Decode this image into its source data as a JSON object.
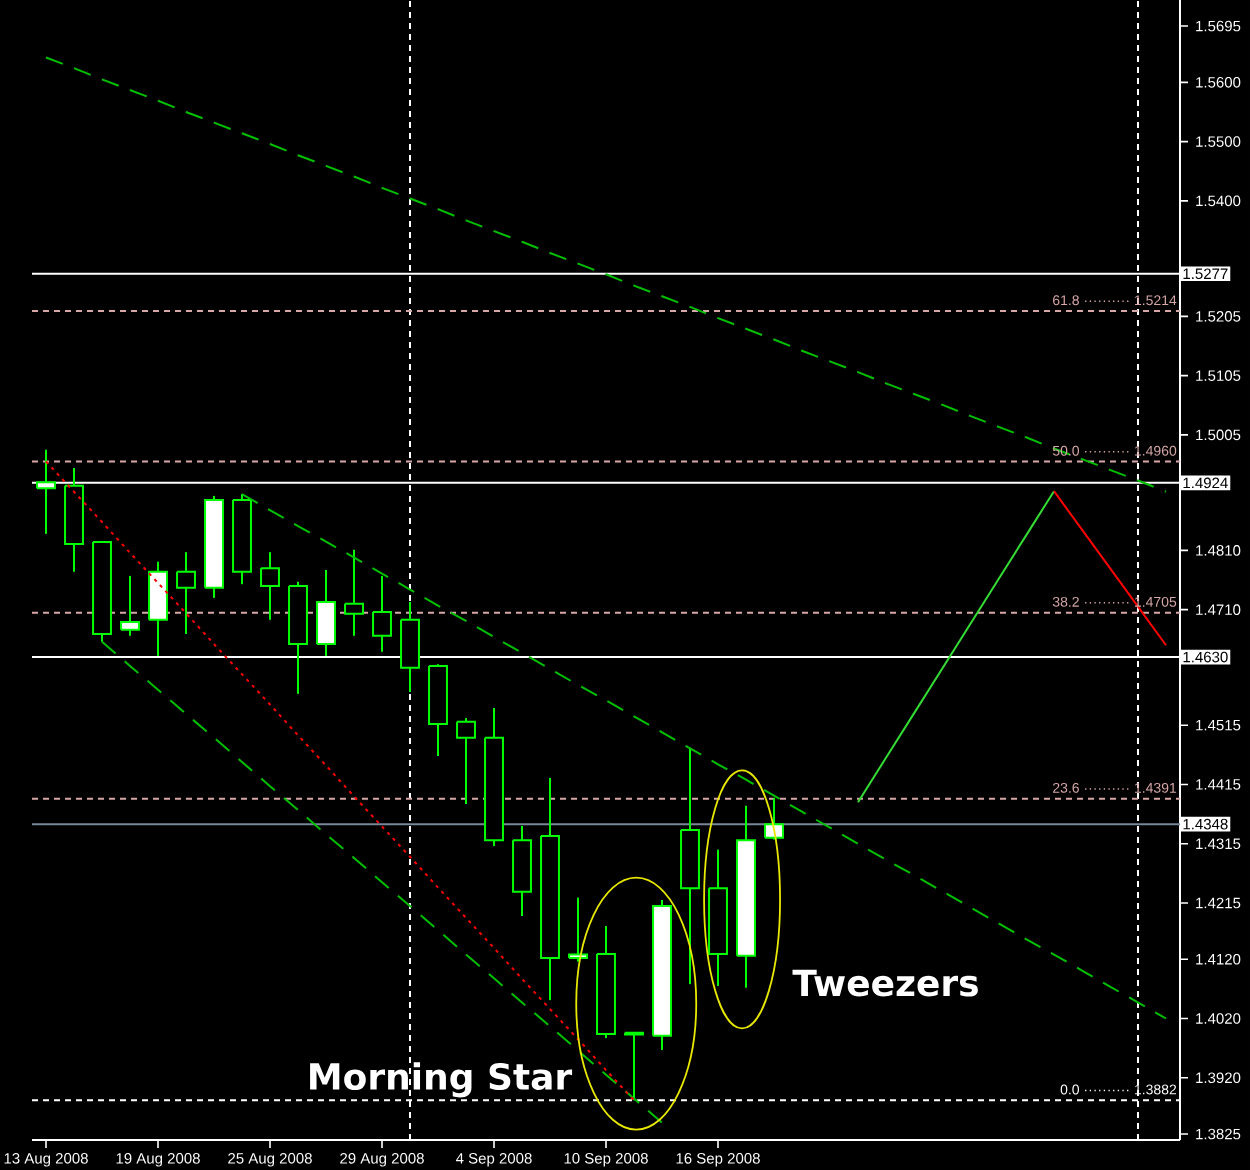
{
  "chart_data": {
    "type": "candlestick",
    "categories": [
      "13 Aug 2008",
      null,
      null,
      null,
      "19 Aug 2008",
      null,
      null,
      null,
      "25 Aug 2008",
      null,
      null,
      null,
      "29 Aug 2008",
      null,
      null,
      null,
      "4 Sep 2008",
      null,
      null,
      null,
      "10 Sep 2008",
      null,
      null,
      null,
      "16 Sep 2008",
      null,
      null,
      null,
      null,
      null,
      null,
      null,
      null,
      null,
      null,
      null,
      null,
      null,
      null,
      null,
      null
    ],
    "ohlc": [
      [
        1.4915,
        1.498,
        1.4838,
        1.4925
      ],
      [
        1.4919,
        1.4949,
        1.4774,
        1.4821
      ],
      [
        1.4824,
        1.4826,
        1.4656,
        1.4669
      ],
      [
        1.4676,
        1.4767,
        1.4666,
        1.4689
      ],
      [
        1.4693,
        1.4791,
        1.4632,
        1.4774
      ],
      [
        1.4774,
        1.4807,
        1.4669,
        1.4747
      ],
      [
        1.4747,
        1.4902,
        1.473,
        1.4895
      ],
      [
        1.4895,
        1.4905,
        1.4753,
        1.4774
      ],
      [
        1.478,
        1.4807,
        1.4693,
        1.475
      ],
      [
        1.475,
        1.4757,
        1.4568,
        1.4652
      ],
      [
        1.4652,
        1.4777,
        1.4632,
        1.4723
      ],
      [
        1.472,
        1.4811,
        1.4666,
        1.4703
      ],
      [
        1.4706,
        1.4767,
        1.4639,
        1.4666
      ],
      [
        1.4693,
        1.4723,
        1.4571,
        1.4612
      ],
      [
        1.4615,
        1.4618,
        1.4463,
        1.4517
      ],
      [
        1.4521,
        1.4527,
        1.4382,
        1.4494
      ],
      [
        1.4494,
        1.4544,
        1.4311,
        1.4321
      ],
      [
        1.4321,
        1.4345,
        1.4193,
        1.4234
      ],
      [
        1.4328,
        1.4426,
        1.4051,
        1.4122
      ],
      [
        1.4122,
        1.4224,
        1.4116,
        1.4128
      ],
      [
        1.4129,
        1.4176,
        1.3987,
        1.3994
      ],
      [
        1.3996,
        1.3996,
        1.3882,
        1.3993
      ],
      [
        1.3991,
        1.422,
        1.3967,
        1.421
      ],
      [
        1.4338,
        1.4477,
        1.4078,
        1.424
      ],
      [
        1.424,
        1.4305,
        1.4075,
        1.4129
      ],
      [
        1.4126,
        1.4379,
        1.4072,
        1.4321
      ],
      [
        1.4325,
        1.4392,
        1.4322,
        1.4348
      ],
      null,
      null,
      null,
      null,
      null,
      null,
      null,
      null,
      null,
      null,
      null,
      null,
      null,
      null
    ],
    "color": "#00ff00",
    "colors": [
      "#ffffff",
      "#000000",
      "#000000",
      "#ffffff",
      "#ffffff",
      "#000000",
      "#ffffff",
      "#000000",
      "#000000",
      "#000000",
      "#ffffff",
      "#000000",
      "#000000",
      "#000000",
      "#000000",
      "#000000",
      "#000000",
      "#000000",
      "#000000",
      "#ffffff",
      "#000000",
      "#000000",
      "#ffffff",
      "#000000",
      "#000000",
      "#ffffff",
      "#ffffff",
      null,
      null,
      null,
      null,
      null,
      null,
      null,
      null,
      null,
      null,
      null,
      null,
      null,
      null
    ],
    "series": [
      {
        "type": "line",
        "values": [
          1.5642,
          1.5624,
          1.5605,
          1.5587,
          1.5569,
          1.555,
          1.5532,
          1.5514,
          1.5496,
          1.5477,
          1.5459,
          1.5441,
          1.5422,
          1.5404,
          1.5386,
          1.5367,
          1.5349,
          1.5331,
          1.5312,
          1.5294,
          1.5276,
          1.5257,
          1.5239,
          1.5221,
          1.5202,
          1.5184,
          1.5166,
          1.5147,
          1.5129,
          1.5111,
          1.5092,
          1.5074,
          1.5056,
          1.5037,
          1.5019,
          1.5001,
          1.4982,
          1.4964,
          1.4946,
          1.4928,
          1.4909
        ],
        "color": "#00c000",
        "line_style": "dashed"
      },
      {
        "type": "line",
        "values": [
          null,
          null,
          null,
          null,
          null,
          null,
          null,
          1.4905,
          1.4878,
          1.4851,
          1.4825,
          1.4798,
          1.4771,
          1.4744,
          1.4717,
          1.4691,
          1.4664,
          1.4637,
          1.461,
          1.4583,
          1.4557,
          1.453,
          1.4503,
          1.4476,
          1.4449,
          1.4423,
          1.4396,
          1.4369,
          1.4342,
          1.4315,
          1.4288,
          1.4262,
          1.4235,
          1.4208,
          1.4181,
          1.4154,
          1.4128,
          1.4101,
          1.4074,
          1.4047,
          1.402
        ],
        "color": "#00c000",
        "line_style": "dashed"
      },
      {
        "type": "line",
        "values": [
          null,
          null,
          1.4656,
          1.4615,
          1.4575,
          1.4534,
          1.4494,
          1.4453,
          1.4412,
          1.4372,
          1.4331,
          1.4291,
          1.425,
          1.421,
          1.4169,
          1.4128,
          1.4088,
          1.4047,
          1.4007,
          1.3966,
          1.3925,
          1.3885,
          1.3844,
          null,
          null,
          null,
          null,
          null,
          null,
          null,
          null,
          null,
          null,
          null,
          null,
          null,
          null,
          null,
          null,
          null,
          null
        ],
        "color": "#00c000",
        "line_style": "dashed"
      },
      {
        "type": "line",
        "values": [
          1.496,
          1.4909,
          1.4858,
          1.4806,
          1.4755,
          1.4704,
          1.4652,
          1.4601,
          1.455,
          1.4498,
          1.4447,
          1.4395,
          1.4344,
          1.4293,
          1.4241,
          1.419,
          1.4139,
          1.4087,
          1.4036,
          1.3985,
          1.3933,
          1.3882,
          null,
          null,
          null,
          null,
          null,
          null,
          null,
          null,
          null,
          null,
          null,
          null,
          null,
          null,
          null,
          null,
          null,
          null,
          null
        ],
        "color": "#ff0000",
        "line_style": "dotted"
      },
      {
        "type": "line",
        "values": [
          null,
          null,
          null,
          null,
          null,
          null,
          null,
          null,
          null,
          null,
          null,
          null,
          null,
          null,
          null,
          null,
          null,
          null,
          null,
          null,
          null,
          null,
          null,
          null,
          null,
          null,
          null,
          null,
          null,
          1.4385,
          1.446,
          1.4535,
          1.461,
          1.4685,
          1.476,
          1.4835,
          1.491,
          null,
          null,
          null,
          null
        ],
        "color": "#33dd33",
        "line_style": "solid"
      },
      {
        "type": "line",
        "values": [
          null,
          null,
          null,
          null,
          null,
          null,
          null,
          null,
          null,
          null,
          null,
          null,
          null,
          null,
          null,
          null,
          null,
          null,
          null,
          null,
          null,
          null,
          null,
          null,
          null,
          null,
          null,
          null,
          null,
          null,
          null,
          null,
          null,
          null,
          null,
          null,
          1.491,
          1.4845,
          1.478,
          1.4715,
          1.465
        ],
        "color": "#ff0000",
        "line_style": "solid"
      }
    ],
    "ylim": [
      1.3815,
      1.5739
    ],
    "yticks": [
      1.5695,
      {
        "value": 1.56,
        "label": "1.5600"
      },
      {
        "value": 1.55,
        "label": "1.5500"
      },
      {
        "value": 1.54,
        "label": "1.5400"
      },
      1.5205,
      1.5105,
      1.5005,
      {
        "value": 1.481,
        "label": "1.4810"
      },
      {
        "value": 1.471,
        "label": "1.4710"
      },
      1.4515,
      1.4415,
      1.4315,
      1.4215,
      {
        "value": 1.412,
        "label": "1.4120"
      },
      {
        "value": 1.402,
        "label": "1.4020"
      },
      {
        "value": 1.392,
        "label": "1.3920"
      },
      1.3825
    ],
    "ref_lines": [
      {
        "axis": "y",
        "value": 1.5277,
        "label": "1.5277",
        "color": "#ffffff",
        "line_style": "solid"
      },
      {
        "axis": "y",
        "value": 1.4924,
        "label": "1.4924",
        "color": "#ffffff",
        "line_style": "solid"
      },
      {
        "axis": "y",
        "value": 1.463,
        "label": "1.4630",
        "color": "#ffffff",
        "line_style": "solid"
      },
      {
        "axis": "y",
        "value": 1.4348,
        "label": "1.4348",
        "color": "#778899",
        "line_style": "solid"
      },
      {
        "axis": "y",
        "value": 1.5214,
        "label": "61.8 ·········· 1.5214",
        "color": "#d8a8a8",
        "line_style": "dashed"
      },
      {
        "axis": "y",
        "value": 1.496,
        "label": "50.0 ·········· 1.4960",
        "color": "#d8a8a8",
        "line_style": "dashed"
      },
      {
        "axis": "y",
        "value": 1.4705,
        "label": "38.2 ·········· 1.4705",
        "color": "#d8a8a8",
        "line_style": "dashed"
      },
      {
        "axis": "y",
        "value": 1.4391,
        "label": "23.6 ·········· 1.4391",
        "color": "#d8a8a8",
        "line_style": "dashed"
      },
      {
        "axis": "y",
        "value": 1.3882,
        "label": "0.0 ·········· 1.3882",
        "color": "#ffffff",
        "line_style": "dashed"
      }
    ],
    "annotations": [
      "Morning Star",
      "Tweezers"
    ]
  }
}
